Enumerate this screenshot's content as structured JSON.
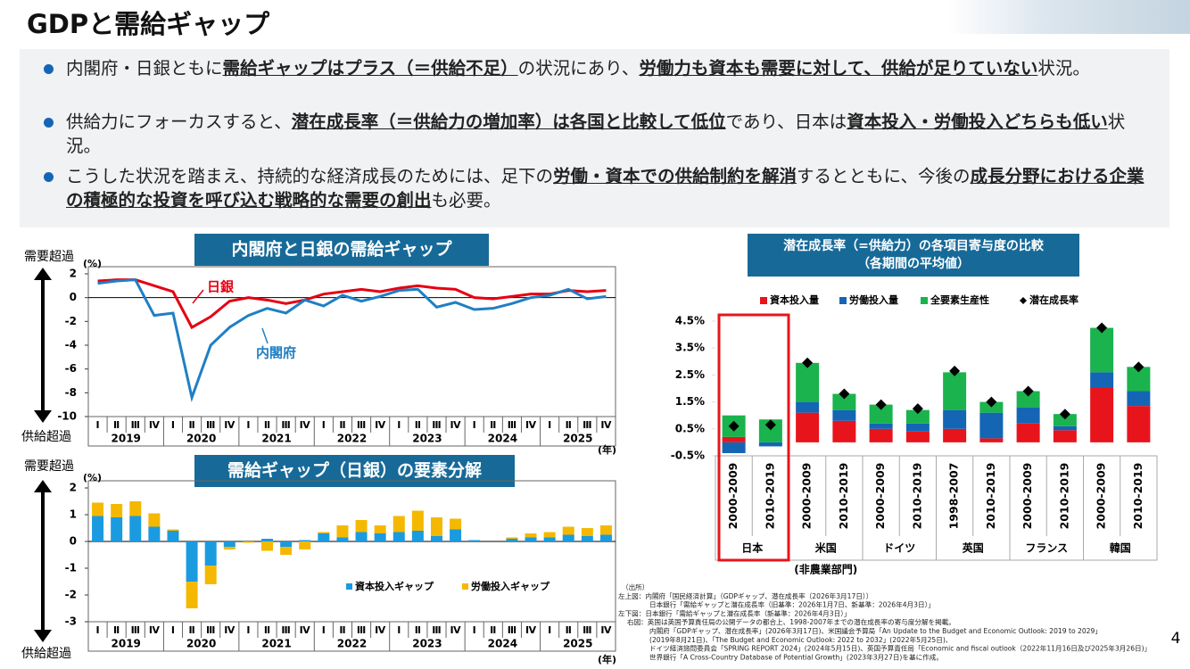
{
  "title": "GDPと需給ギャップ",
  "bullets": [
    [
      {
        "text": "内閣府・日銀ともに"
      },
      {
        "text": "需給ギャップはプラス（＝供給不足）",
        "strong": true
      },
      {
        "text": "の状況にあり、"
      },
      {
        "text": "労働力も資本も需要に対して、供給が足りていない",
        "strong": true
      },
      {
        "text": "状況。"
      }
    ],
    [
      {
        "text": "供給力にフォーカスすると、"
      },
      {
        "text": "潜在成長率（＝供給力の増加率）は各国と比較して低位",
        "strong": true
      },
      {
        "text": "であり、日本は"
      },
      {
        "text": "資本投入・労働投入どちらも低い",
        "strong": true
      },
      {
        "text": "状況。"
      }
    ],
    [
      {
        "text": "こうした状況を踏まえ、持続的な経済成長のためには、足下の"
      },
      {
        "text": "労働・資本での供給制約を解消",
        "strong": true
      },
      {
        "text": "するとともに、今後の"
      },
      {
        "text": "成長分野における企業の積極的な投資を呼び込む戦略的な需要の創出",
        "strong": true
      },
      {
        "text": "も必要。"
      }
    ]
  ],
  "chart_data": [
    {
      "type": "line",
      "title": "内閣府と日銀の需給ギャップ",
      "y_unit": "(%)",
      "x_unit": "(年)",
      "top_label": "需要超過",
      "bottom_label": "供給超過",
      "categories": [
        "Ⅰ",
        "Ⅱ",
        "Ⅲ",
        "Ⅳ",
        "Ⅰ",
        "Ⅱ",
        "Ⅲ",
        "Ⅳ",
        "Ⅰ",
        "Ⅱ",
        "Ⅲ",
        "Ⅳ",
        "Ⅰ",
        "Ⅱ",
        "Ⅲ",
        "Ⅳ",
        "Ⅰ",
        "Ⅱ",
        "Ⅲ",
        "Ⅳ",
        "Ⅰ",
        "Ⅱ",
        "Ⅲ",
        "Ⅳ",
        "Ⅰ",
        "Ⅱ",
        "Ⅲ",
        "Ⅳ"
      ],
      "year_labels": [
        "2019",
        "2020",
        "2021",
        "2022",
        "2023",
        "2024",
        "2025"
      ],
      "series": [
        {
          "name": "日銀",
          "color": "#e60012",
          "values": [
            1.4,
            1.5,
            1.5,
            1.0,
            0.5,
            -2.5,
            -1.6,
            -0.3,
            0.0,
            -0.2,
            -0.5,
            -0.2,
            0.3,
            0.5,
            0.7,
            0.5,
            0.8,
            1.0,
            0.8,
            0.7,
            0.0,
            -0.1,
            0.1,
            0.3,
            0.3,
            0.6,
            0.5,
            0.6
          ]
        },
        {
          "name": "内閣府",
          "color": "#1f7fc4",
          "values": [
            1.2,
            1.4,
            1.5,
            -1.5,
            -1.3,
            -8.4,
            -4.0,
            -2.5,
            -1.5,
            -0.9,
            -1.3,
            -0.2,
            -0.7,
            0.2,
            -0.3,
            0.1,
            0.6,
            0.7,
            -0.8,
            -0.4,
            -1.0,
            -0.9,
            -0.5,
            0.0,
            0.2,
            0.7,
            -0.1,
            0.1
          ]
        }
      ],
      "ylim": [
        -10,
        2
      ],
      "yticks": [
        2,
        0,
        -2,
        -4,
        -6,
        -8,
        -10
      ]
    },
    {
      "type": "bar",
      "stacked": true,
      "title": "需給ギャップ（日銀）の要素分解",
      "y_unit": "(%)",
      "x_unit": "(年)",
      "top_label": "需要超過",
      "bottom_label": "供給超過",
      "categories": [
        "Ⅰ",
        "Ⅱ",
        "Ⅲ",
        "Ⅳ",
        "Ⅰ",
        "Ⅱ",
        "Ⅲ",
        "Ⅳ",
        "Ⅰ",
        "Ⅱ",
        "Ⅲ",
        "Ⅳ",
        "Ⅰ",
        "Ⅱ",
        "Ⅲ",
        "Ⅳ",
        "Ⅰ",
        "Ⅱ",
        "Ⅲ",
        "Ⅳ",
        "Ⅰ",
        "Ⅱ",
        "Ⅲ",
        "Ⅳ",
        "Ⅰ",
        "Ⅱ",
        "Ⅲ",
        "Ⅳ"
      ],
      "year_labels": [
        "2019",
        "2020",
        "2021",
        "2022",
        "2023",
        "2024",
        "2025"
      ],
      "series": [
        {
          "name": "資本投入ギャップ",
          "color": "#1a9be0",
          "values": [
            0.95,
            0.9,
            0.95,
            0.55,
            0.4,
            -1.5,
            -0.9,
            -0.2,
            0.0,
            0.1,
            -0.2,
            0.05,
            0.3,
            0.15,
            0.35,
            0.3,
            0.35,
            0.4,
            0.2,
            0.45,
            0.05,
            0.0,
            0.1,
            0.15,
            0.15,
            0.25,
            0.2,
            0.25
          ]
        },
        {
          "name": "労働投入ギャップ",
          "color": "#f5b800",
          "values": [
            0.5,
            0.5,
            0.55,
            0.5,
            0.05,
            -1.0,
            -0.7,
            -0.1,
            -0.05,
            -0.35,
            -0.3,
            -0.3,
            0.05,
            0.45,
            0.45,
            0.3,
            0.6,
            0.75,
            0.7,
            0.4,
            0.0,
            0.0,
            0.05,
            0.15,
            0.2,
            0.3,
            0.3,
            0.35
          ]
        }
      ],
      "ylim": [
        -3,
        2
      ],
      "yticks": [
        2,
        1,
        0,
        -1,
        -2,
        -3
      ]
    },
    {
      "type": "bar",
      "stacked": true,
      "title": "潜在成長率（=供給力）の各項目寄与度の比較",
      "subtitle": "（各期間の平均値）",
      "categories": [
        "2000-2009",
        "2010-2019",
        "2000-2009",
        "2010-2019",
        "2000-2009",
        "2010-2019",
        "1998-2007",
        "2010-2019",
        "2000-2009",
        "2010-2019",
        "2000-2009",
        "2010-2019"
      ],
      "groups": [
        "日本",
        "米国",
        "ドイツ",
        "英国",
        "フランス",
        "韓国"
      ],
      "group_note": "(非農業部門)",
      "series": [
        {
          "name": "資本投入量",
          "color": "#e8141c",
          "values": [
            0.2,
            0.0,
            1.1,
            0.8,
            0.5,
            0.4,
            0.5,
            0.15,
            0.7,
            0.45,
            2.05,
            1.35
          ]
        },
        {
          "name": "労働投入量",
          "color": "#1565b5",
          "values": [
            -0.4,
            -0.15,
            0.4,
            0.4,
            0.2,
            0.3,
            0.7,
            0.95,
            0.6,
            0.15,
            0.55,
            0.55
          ]
        },
        {
          "name": "全要素生産性",
          "color": "#1ab34d",
          "values": [
            0.8,
            0.85,
            1.45,
            0.6,
            0.7,
            0.5,
            1.4,
            0.4,
            0.6,
            0.45,
            1.65,
            0.9
          ]
        },
        {
          "name": "潜在成長率",
          "type": "scatter",
          "color": "#000000",
          "values": [
            0.6,
            0.65,
            2.95,
            1.8,
            1.4,
            1.25,
            2.65,
            1.5,
            1.9,
            1.05,
            4.25,
            2.8
          ]
        }
      ],
      "ylim": [
        -0.5,
        4.5
      ],
      "yticks": [
        {
          "value": 4.5,
          "label": "4.5%"
        },
        {
          "value": 3.5,
          "label": "3.5%"
        },
        {
          "value": 2.5,
          "label": "2.5%"
        },
        {
          "value": 1.5,
          "label": "1.5%"
        },
        {
          "value": 0.5,
          "label": "0.5%"
        },
        {
          "value": -0.5,
          "label": "-0.5%"
        }
      ]
    }
  ],
  "sources": [
    "（出所）",
    "左上図：内閣府「国民経済計算」（GDPギャップ、潜在成長率（2026年3月17日））",
    "日本銀行「需給ギャップと潜在成長率（旧基準：2026年1月7日、新基準：2026年4月3日）」",
    "左下図：日本銀行「需給ギャップと潜在成長率（新基準：2026年4月3日）」",
    "右図：英国は英国予算責任局の公開データの都合上、1998-2007年までの潜在成長率の寄与度分解を掲載。",
    "内閣府「GDPギャップ、潜在成長率」(2026年3月17日)、米国議会予算局「An Update to the Budget and Economic Outlook: 2019 to 2029」",
    "(2019年8月21日)、「The Budget and Economic Outlook: 2022 to 2032」(2022年5月25日)、",
    "ドイツ経済諮問委員会「SPRING REPORT 2024」(2024年5月15日)、英国予算責任局「Economic and fiscal outlook（2022年11月16日及び2025年3月26日)」",
    "世界銀行「A Cross-Country Database of Potential Growth」(2023年3月27日)を基に作成。"
  ],
  "page_number": "4"
}
